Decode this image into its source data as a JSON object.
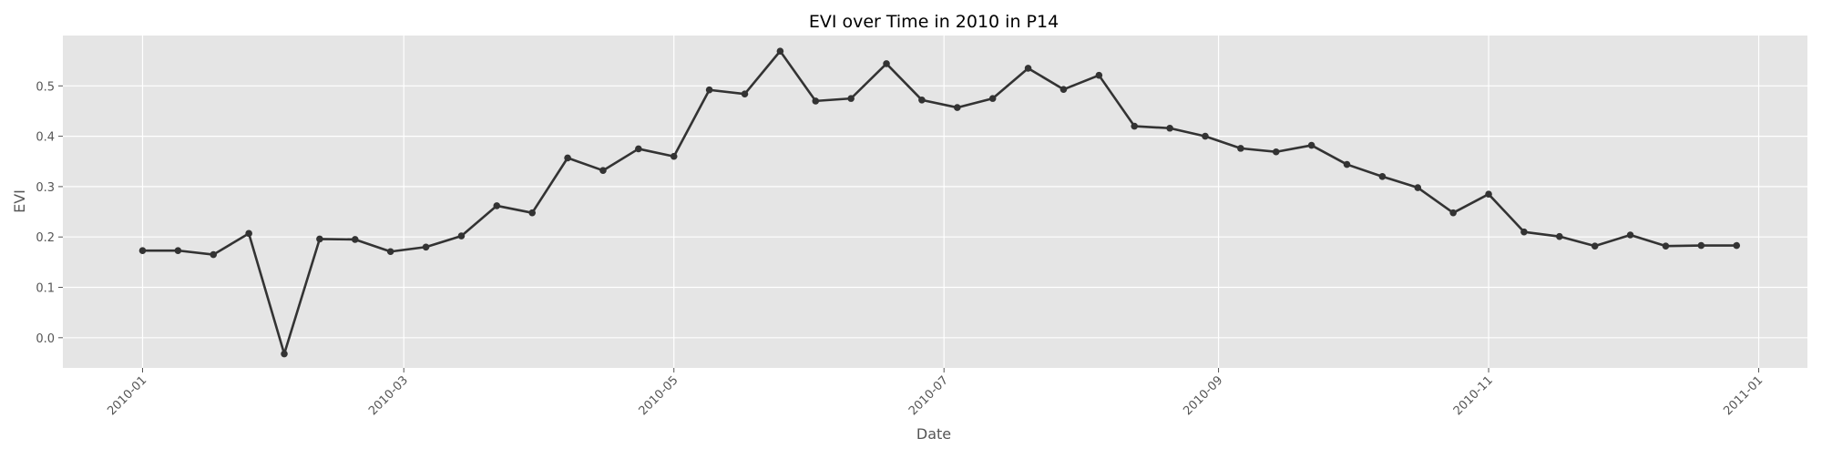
{
  "chart_data": {
    "type": "line",
    "title": "EVI over Time in 2010 in P14",
    "xlabel": "Date",
    "ylabel": "EVI",
    "x_ticks": [
      "2010-01",
      "2010-03",
      "2010-05",
      "2010-07",
      "2010-09",
      "2010-11",
      "2011-01"
    ],
    "x_tick_dates": [
      "2010-01-01",
      "2010-03-01",
      "2010-05-01",
      "2010-07-01",
      "2010-09-01",
      "2010-11-01",
      "2011-01-01"
    ],
    "y_ticks": [
      "0.0",
      "0.1",
      "0.2",
      "0.3",
      "0.4",
      "0.5"
    ],
    "xlim": [
      "2009-12-14",
      "2011-01-12"
    ],
    "ylim": [
      -0.06,
      0.6
    ],
    "grid": true,
    "colors": {
      "line": "#333333",
      "plot_bg": "#e5e5e5",
      "grid": "#ffffff",
      "text": "#555555"
    },
    "series": [
      {
        "x": [
          "2010-01-01",
          "2010-01-09",
          "2010-01-17",
          "2010-01-25",
          "2010-02-02",
          "2010-02-10",
          "2010-02-18",
          "2010-02-26",
          "2010-03-06",
          "2010-03-14",
          "2010-03-22",
          "2010-03-30",
          "2010-04-07",
          "2010-04-15",
          "2010-04-23",
          "2010-05-01",
          "2010-05-09",
          "2010-05-17",
          "2010-05-25",
          "2010-06-02",
          "2010-06-10",
          "2010-06-18",
          "2010-06-26",
          "2010-07-04",
          "2010-07-12",
          "2010-07-20",
          "2010-07-28",
          "2010-08-05",
          "2010-08-13",
          "2010-08-21",
          "2010-08-29",
          "2010-09-06",
          "2010-09-14",
          "2010-09-22",
          "2010-09-30",
          "2010-10-08",
          "2010-10-16",
          "2010-10-24",
          "2010-11-01",
          "2010-11-09",
          "2010-11-17",
          "2010-11-25",
          "2010-12-03",
          "2010-12-11",
          "2010-12-19",
          "2010-12-27"
        ],
        "values": [
          0.173,
          0.173,
          0.165,
          0.207,
          -0.032,
          0.196,
          0.195,
          0.171,
          0.18,
          0.202,
          0.262,
          0.248,
          0.357,
          0.332,
          0.375,
          0.36,
          0.492,
          0.484,
          0.569,
          0.47,
          0.475,
          0.544,
          0.472,
          0.457,
          0.475,
          0.535,
          0.493,
          0.521,
          0.42,
          0.416,
          0.4,
          0.376,
          0.369,
          0.382,
          0.344,
          0.32,
          0.298,
          0.248,
          0.285,
          0.21,
          0.201,
          0.182,
          0.204,
          0.182,
          0.183,
          0.183
        ]
      }
    ]
  }
}
